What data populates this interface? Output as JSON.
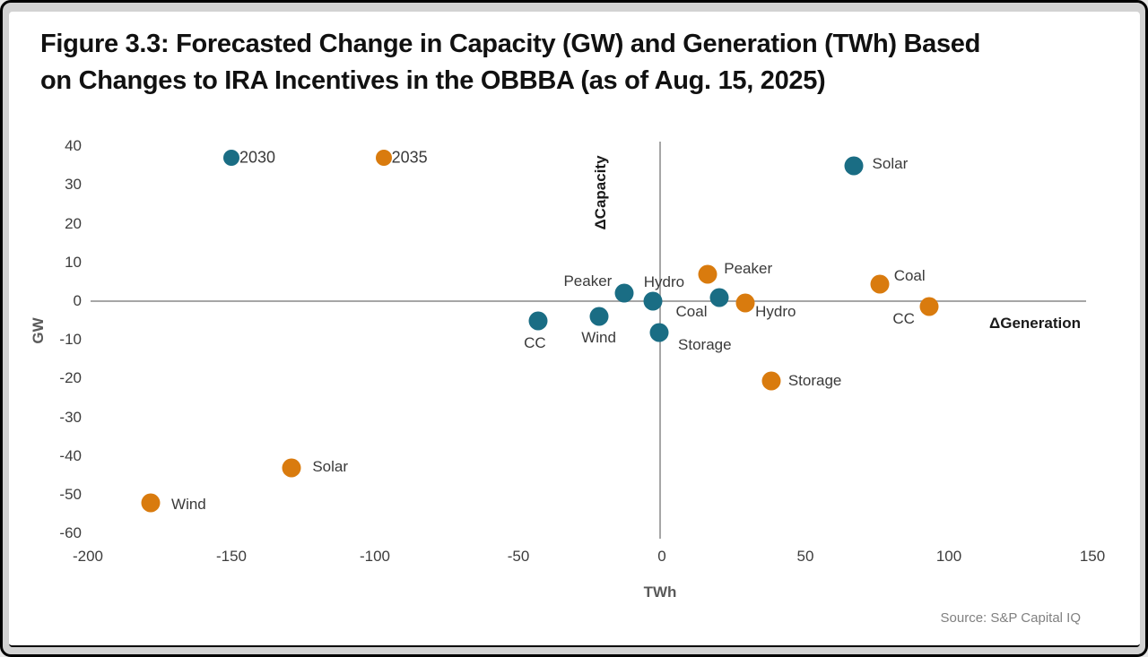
{
  "figure": {
    "title": "Figure 3.3: Forecasted Change in Capacity (GW) and Generation (TWh) Based on Changes to IRA Incentives in the OBBBA (as of Aug. 15, 2025)",
    "title_line1": "Figure 3.3: Forecasted Change in Capacity (GW) and Generation (TWh) Based",
    "title_line2": "on Changes to IRA Incentives in the OBBBA (as of Aug. 15, 2025)",
    "source": "Source: S&P Capital IQ"
  },
  "chart_data": {
    "type": "scatter",
    "xlabel": "TWh",
    "ylabel": "GW",
    "x_axis_annotation": "ΔGeneration",
    "y_axis_annotation": "ΔCapacity",
    "xlim": [
      -200,
      150
    ],
    "ylim": [
      -60,
      40
    ],
    "x_ticks": [
      -200,
      -150,
      -100,
      -50,
      0,
      50,
      100,
      150
    ],
    "y_ticks": [
      40,
      30,
      20,
      10,
      0,
      -10,
      -20,
      -30,
      -40,
      -50,
      -60
    ],
    "grid": false,
    "legend_position": "top-left-inside",
    "legend": [
      {
        "name": "2030",
        "color": "#1A6D84",
        "pos": [
          -150,
          37
        ]
      },
      {
        "name": "2035",
        "color": "#D97B0E",
        "pos": [
          -97,
          37
        ]
      }
    ],
    "series": [
      {
        "name": "2030",
        "color": "#1A6D84",
        "points": [
          {
            "label": "Solar",
            "x": 67,
            "y": 35,
            "label_offset": [
              40,
              -2
            ]
          },
          {
            "label": "Peaker",
            "x": -13,
            "y": 2,
            "label_offset": [
              -41,
              -13
            ]
          },
          {
            "label": "Hydro",
            "x": -3,
            "y": 0,
            "label_offset": [
              12,
              -21
            ]
          },
          {
            "label": "Coal",
            "x": 20,
            "y": 1,
            "label_offset": [
              -31,
              16
            ]
          },
          {
            "label": "CC",
            "x": -43,
            "y": -5,
            "label_offset": [
              -4,
              25
            ]
          },
          {
            "label": "Wind",
            "x": -22,
            "y": -4,
            "label_offset": [
              0,
              24
            ]
          },
          {
            "label": "Storage",
            "x": -1,
            "y": -8,
            "label_offset": [
              51,
              14
            ]
          }
        ]
      },
      {
        "name": "2035",
        "color": "#D97B0E",
        "points": [
          {
            "label": "Peaker",
            "x": 16,
            "y": 7,
            "label_offset": [
              45,
              -6
            ]
          },
          {
            "label": "Hydro",
            "x": 29,
            "y": -0.5,
            "label_offset": [
              34,
              10
            ]
          },
          {
            "label": "Storage",
            "x": 38,
            "y": -20.5,
            "label_offset": [
              49,
              0
            ]
          },
          {
            "label": "Coal",
            "x": 76,
            "y": 4.5,
            "label_offset": [
              33,
              -9
            ]
          },
          {
            "label": "CC",
            "x": 93,
            "y": -1.5,
            "label_offset": [
              -28,
              14
            ]
          },
          {
            "label": "Solar",
            "x": -129,
            "y": -43,
            "label_offset": [
              43,
              -1
            ]
          },
          {
            "label": "Wind",
            "x": -178,
            "y": -52,
            "label_offset": [
              42,
              2
            ]
          }
        ]
      }
    ]
  }
}
